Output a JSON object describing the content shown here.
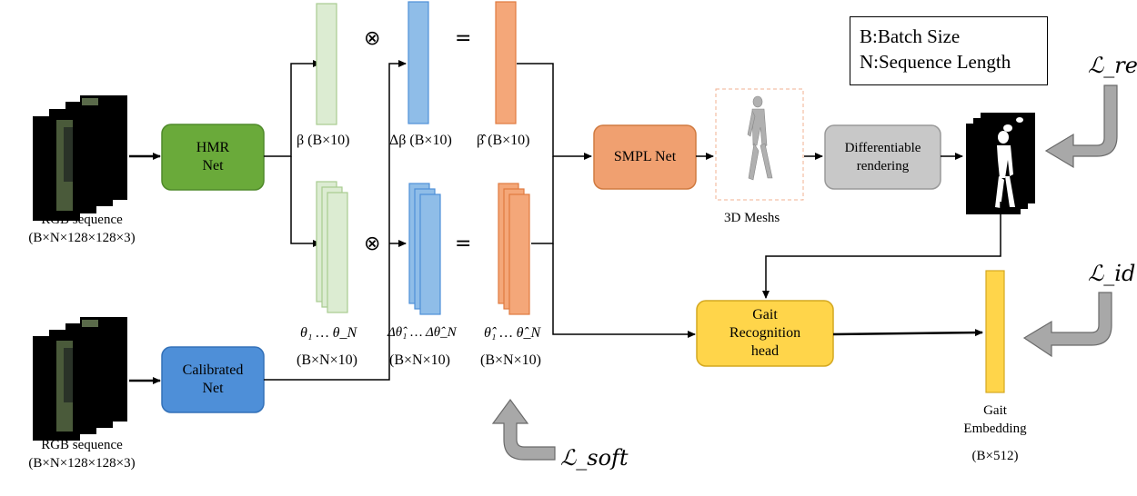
{
  "legend": {
    "line1": "B:Batch Size",
    "line2": "N:Sequence Length"
  },
  "inputs": {
    "top_label": "RGB sequence",
    "top_shape": "(B×N×128×128×3)",
    "bottom_label": "RGB sequence",
    "bottom_shape": "(B×N×128×128×3)"
  },
  "modules": {
    "hmr": {
      "line1": "HMR",
      "line2": "Net"
    },
    "calibrated": {
      "line1": "Calibrated",
      "line2": "Net"
    },
    "smpl": "SMPL Net",
    "diff_render": {
      "line1": "Differentiable",
      "line2": "rendering"
    },
    "gait_head": {
      "line1": "Gait",
      "line2": "Recognition",
      "line3": "head"
    }
  },
  "labels": {
    "beta": "β (B×10)",
    "delta_beta": "Δβ (B×10)",
    "beta_hat": "β̂ (B×10)",
    "theta": "θ₁ … θ_N",
    "theta_shape": "(B×N×10)",
    "delta_theta": "Δθ̂₁ … Δθ̂_N",
    "delta_theta_shape": "(B×N×10)",
    "theta_hat": "θ̂₁ … θ̂_N",
    "theta_hat_shape": "(B×N×10)",
    "meshes": "3D Meshs",
    "embedding_line1": "Gait",
    "embedding_line2": "Embedding",
    "embedding_shape": "(B×512)"
  },
  "operators": {
    "mult": "⊗",
    "eq": "="
  },
  "losses": {
    "rec": "ℒ_rec",
    "id": "ℒ_id",
    "soft": "ℒ_soft"
  },
  "colors": {
    "hmr": "#6aaa3a",
    "calibrated": "#4e8fd8",
    "smpl": "#f0a070",
    "render": "#c8c8c8",
    "gait": "#ffd54a",
    "green_vec": "#dcecd2",
    "blue_vec": "#8fbde8",
    "orange_vec": "#f4a779",
    "yellow_vec": "#ffd54a"
  }
}
